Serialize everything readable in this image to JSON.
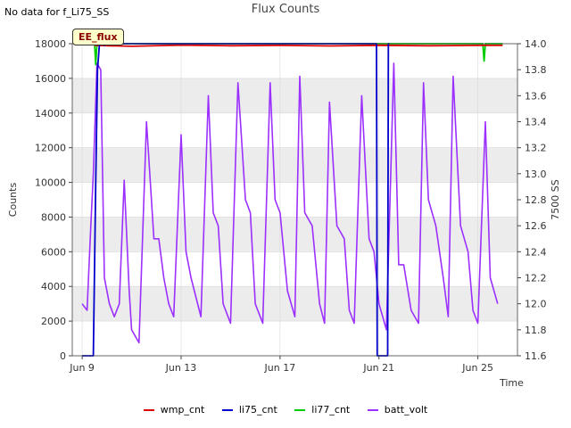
{
  "header": {
    "no_data_note": "No data for f_Li75_SS",
    "badge_label": "EE_flux"
  },
  "chart_data": {
    "type": "line",
    "title": "Flux Counts",
    "xlabel": "Time",
    "ylabel": "Counts",
    "y2label": "7500 SS",
    "xlim": [
      -0.4,
      17.6
    ],
    "ylim": [
      0,
      18000
    ],
    "y2lim": [
      11.6,
      14.0
    ],
    "x_ticks": [
      0,
      4,
      8,
      12,
      16
    ],
    "x_tick_labels": [
      "Jun 9",
      "Jun 13",
      "Jun 17",
      "Jun 21",
      "Jun 25"
    ],
    "y_ticks": [
      0,
      2000,
      4000,
      6000,
      8000,
      10000,
      12000,
      14000,
      16000,
      18000
    ],
    "y_tick_labels": [
      "0",
      "2000",
      "4000",
      "6000",
      "8000",
      "10000",
      "12000",
      "14000",
      "16000",
      "18000"
    ],
    "y2_ticks": [
      11.6,
      11.8,
      12.0,
      12.2,
      12.4,
      12.6,
      12.8,
      13.0,
      13.2,
      13.4,
      13.6,
      13.8,
      14.0
    ],
    "y2_tick_labels": [
      "11.6",
      "11.8",
      "12.0",
      "12.2",
      "12.4",
      "12.6",
      "12.8",
      "13.0",
      "13.2",
      "13.4",
      "13.6",
      "13.8",
      "14.0"
    ],
    "bands": [
      [
        2000,
        4000
      ],
      [
        6000,
        8000
      ],
      [
        10000,
        12000
      ],
      [
        14000,
        16000
      ]
    ],
    "series": [
      {
        "name": "wmp_cnt",
        "color": "#dd0000",
        "axis": "left",
        "x": [
          0.5,
          2,
          4,
          6,
          8,
          10,
          12,
          14,
          16,
          17
        ],
        "y": [
          17900,
          17850,
          17920,
          17880,
          17900,
          17870,
          17910,
          17880,
          17900,
          17900
        ]
      },
      {
        "name": "li75_cnt",
        "color": "#0000cc",
        "axis": "left",
        "x": [
          0,
          0.45,
          0.55,
          0.62,
          0.7,
          0.78,
          0.85,
          0.9,
          0.92,
          11.9,
          11.93,
          11.96,
          12.05,
          12.35,
          12.38,
          12.42
        ],
        "y": [
          0,
          0,
          10000,
          16500,
          18000,
          18000,
          18000,
          17900,
          18000,
          18000,
          0,
          0,
          0,
          0,
          18000,
          18000
        ]
      },
      {
        "name": "li77_cnt",
        "color": "#00cc00",
        "axis": "left",
        "x": [
          0,
          0.5,
          0.55,
          0.6,
          0.65,
          0.7,
          16,
          16.2,
          16.25,
          16.3,
          16.35,
          17
        ],
        "y": [
          18000,
          18000,
          16800,
          18000,
          18000,
          18000,
          18000,
          18000,
          17000,
          18000,
          18000,
          18000
        ]
      },
      {
        "name": "batt_volt",
        "color": "#9b30ff",
        "axis": "right",
        "x": [
          0,
          0.2,
          0.35,
          0.45,
          0.6,
          0.75,
          0.9,
          1.1,
          1.3,
          1.5,
          1.7,
          1.9,
          2.0,
          2.3,
          2.6,
          2.9,
          3.1,
          3.3,
          3.5,
          3.7,
          4.0,
          4.2,
          4.4,
          4.8,
          5.1,
          5.3,
          5.5,
          5.7,
          6.0,
          6.3,
          6.6,
          6.8,
          7.0,
          7.3,
          7.6,
          7.8,
          8.0,
          8.3,
          8.6,
          8.8,
          9.0,
          9.3,
          9.6,
          9.8,
          10.0,
          10.3,
          10.6,
          10.8,
          11.0,
          11.3,
          11.6,
          11.8,
          12.0,
          12.3,
          12.6,
          12.8,
          13.0,
          13.3,
          13.6,
          13.8,
          14.0,
          14.3,
          14.6,
          14.8,
          15.0,
          15.3,
          15.6,
          15.8,
          16.0,
          16.3,
          16.5,
          16.8
        ],
        "y": [
          12.0,
          11.95,
          12.6,
          13.0,
          13.85,
          13.8,
          12.2,
          12.0,
          11.9,
          12.0,
          12.95,
          12.1,
          11.8,
          11.7,
          13.4,
          12.5,
          12.5,
          12.2,
          12.0,
          11.9,
          13.3,
          12.4,
          12.2,
          11.9,
          13.6,
          12.7,
          12.6,
          12.0,
          11.85,
          13.7,
          12.8,
          12.7,
          12.0,
          11.85,
          13.7,
          12.8,
          12.7,
          12.1,
          11.9,
          13.75,
          12.7,
          12.6,
          12.0,
          11.85,
          13.55,
          12.6,
          12.5,
          11.95,
          11.85,
          13.6,
          12.5,
          12.4,
          12.0,
          11.8,
          13.85,
          12.3,
          12.3,
          11.95,
          11.85,
          13.7,
          12.8,
          12.6,
          12.2,
          11.9,
          13.75,
          12.6,
          12.4,
          11.95,
          11.85,
          13.4,
          12.2,
          12.0
        ]
      }
    ]
  }
}
